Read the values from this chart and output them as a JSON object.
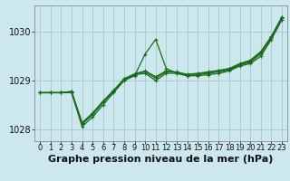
{
  "title": "Graphe pression niveau de la mer (hPa)",
  "background_color": "#cce8ee",
  "grid_color": "#aacccc",
  "line_color": "#1a6b1a",
  "hours": [
    0,
    1,
    2,
    3,
    4,
    5,
    6,
    7,
    8,
    9,
    10,
    11,
    12,
    13,
    14,
    15,
    16,
    17,
    18,
    19,
    20,
    21,
    22,
    23
  ],
  "series1": [
    1028.75,
    1028.75,
    1028.75,
    1028.75,
    1028.05,
    1028.25,
    1028.5,
    1028.75,
    1029.0,
    1029.1,
    1029.55,
    1029.85,
    1029.25,
    1029.15,
    1029.1,
    1029.1,
    1029.12,
    1029.15,
    1029.2,
    1029.3,
    1029.35,
    1029.5,
    1029.85,
    1030.25
  ],
  "series2": [
    1028.75,
    1028.75,
    1028.75,
    1028.78,
    1028.1,
    1028.3,
    1028.55,
    1028.78,
    1029.02,
    1029.12,
    1029.15,
    1029.0,
    1029.15,
    1029.15,
    1029.1,
    1029.12,
    1029.15,
    1029.18,
    1029.22,
    1029.32,
    1029.38,
    1029.55,
    1029.88,
    1030.28
  ],
  "series3": [
    1028.75,
    1028.75,
    1028.75,
    1028.76,
    1028.12,
    1028.32,
    1028.57,
    1028.8,
    1029.03,
    1029.13,
    1029.18,
    1029.05,
    1029.18,
    1029.18,
    1029.12,
    1029.14,
    1029.17,
    1029.2,
    1029.24,
    1029.34,
    1029.4,
    1029.58,
    1029.9,
    1030.3
  ],
  "series4": [
    1028.75,
    1028.75,
    1028.75,
    1028.77,
    1028.13,
    1028.33,
    1028.58,
    1028.79,
    1029.04,
    1029.14,
    1029.2,
    1029.08,
    1029.2,
    1029.17,
    1029.13,
    1029.15,
    1029.18,
    1029.21,
    1029.25,
    1029.35,
    1029.42,
    1029.6,
    1029.91,
    1030.31
  ],
  "ylim_min": 1027.75,
  "ylim_max": 1030.55,
  "yticks": [
    1028,
    1029,
    1030
  ],
  "xlim_min": 0,
  "xlim_max": 23,
  "title_fontsize": 8,
  "tick_fontsize": 6,
  "marker_size": 3,
  "linewidth": 0.9
}
